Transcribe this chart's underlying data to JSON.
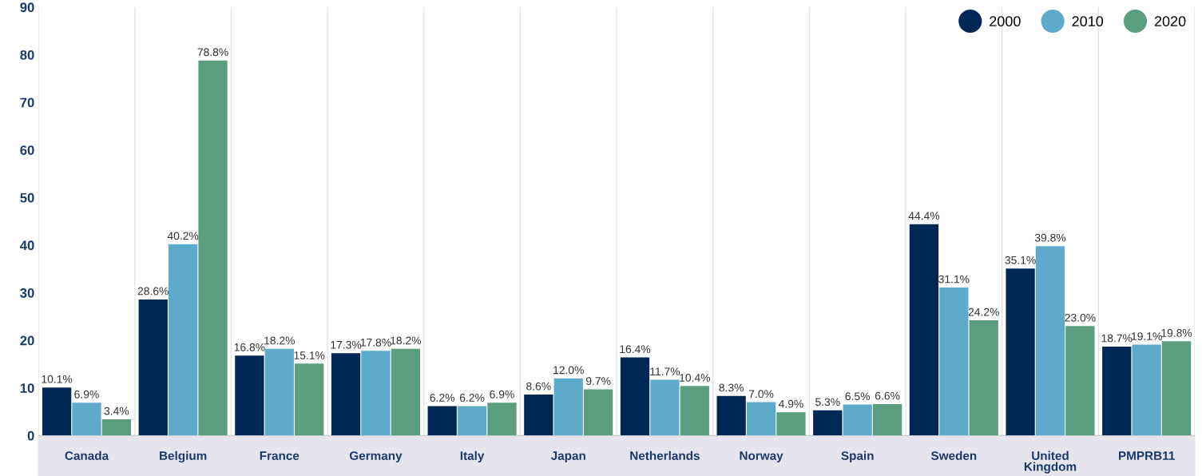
{
  "chart_data": {
    "type": "bar",
    "categories": [
      "Canada",
      "Belgium",
      "France",
      "Germany",
      "Italy",
      "Japan",
      "Netherlands",
      "Norway",
      "Spain",
      "Sweden",
      "United\nKingdom",
      "PMPRB11"
    ],
    "series": [
      {
        "name": "2000",
        "color": "#002855",
        "values": [
          10.1,
          28.6,
          16.8,
          17.3,
          6.2,
          8.6,
          16.4,
          8.3,
          5.3,
          44.4,
          35.1,
          18.7
        ],
        "value_labels": [
          "10.1%",
          "28.6%",
          "16.8%",
          "17.3%",
          "6.2%",
          "8.6%",
          "16.4%",
          "8.3%",
          "5.3%",
          "44.4%",
          "35.1%",
          "18.7%"
        ]
      },
      {
        "name": "2010",
        "color": "#5eaacb",
        "values": [
          6.9,
          40.2,
          18.2,
          17.8,
          6.2,
          12.0,
          11.7,
          7.0,
          6.5,
          31.1,
          39.8,
          19.1
        ],
        "value_labels": [
          "6.9%",
          "40.2%",
          "18.2%",
          "17.8%",
          "6.2%",
          "12.0%",
          "11.7%",
          "7.0%",
          "6.5%",
          "31.1%",
          "39.8%",
          "19.1%"
        ]
      },
      {
        "name": "2020",
        "color": "#5a9e7f",
        "values": [
          3.4,
          78.8,
          15.1,
          18.2,
          6.9,
          9.7,
          10.4,
          4.9,
          6.6,
          24.2,
          23.0,
          19.8
        ],
        "value_labels": [
          "3.4%",
          "78.8%",
          "15.1%",
          "18.2%",
          "6.9%",
          "9.7%",
          "10.4%",
          "4.9%",
          "6.6%",
          "24.2%",
          "23.0%",
          "19.8%"
        ]
      }
    ],
    "ylim": [
      0,
      90
    ],
    "yticks": [
      0,
      10,
      20,
      30,
      40,
      50,
      60,
      70,
      80,
      90
    ],
    "grid": "x",
    "legend": "top right",
    "marker": "circle"
  }
}
